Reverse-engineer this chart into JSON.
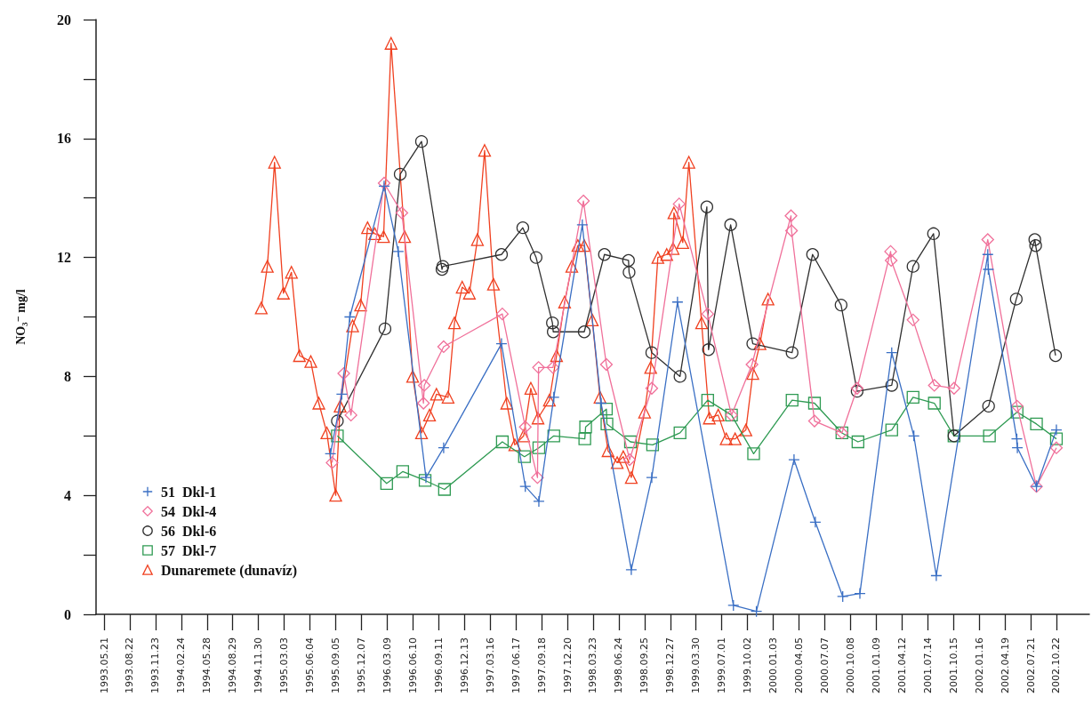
{
  "chart_data": {
    "type": "line",
    "ylabel": "NO₃⁻ mg/l",
    "legend": "bottom left",
    "grid": false,
    "xlim": [
      "1993-04-22",
      "2003-02-18"
    ],
    "xticks": [
      {
        "value": "1993-05-21",
        "label": "1993.05.21"
      },
      {
        "value": "1993-08-22",
        "label": "1993.08.22"
      },
      {
        "value": "1993-11-23",
        "label": "1993.11.23"
      },
      {
        "value": "1994-02-24",
        "label": "1994.02.24"
      },
      {
        "value": "1994-05-28",
        "label": "1994.05.28"
      },
      {
        "value": "1994-08-29",
        "label": "1994.08.29"
      },
      {
        "value": "1994-11-30",
        "label": "1994.11.30"
      },
      {
        "value": "1995-03-03",
        "label": "1995.03.03"
      },
      {
        "value": "1995-06-04",
        "label": "1995.06.04"
      },
      {
        "value": "1995-09-05",
        "label": "1995.09.05"
      },
      {
        "value": "1995-12-07",
        "label": "1995.12.07"
      },
      {
        "value": "1996-03-09",
        "label": "1996.03.09"
      },
      {
        "value": "1996-06-10",
        "label": "1996.06.10"
      },
      {
        "value": "1996-09-11",
        "label": "1996.09.11"
      },
      {
        "value": "1996-12-13",
        "label": "1996.12.13"
      },
      {
        "value": "1997-03-16",
        "label": "1997.03.16"
      },
      {
        "value": "1997-06-17",
        "label": "1997.06.17"
      },
      {
        "value": "1997-09-18",
        "label": "1997.09.18"
      },
      {
        "value": "1997-12-20",
        "label": "1997.12.20"
      },
      {
        "value": "1998-03-23",
        "label": "1998.03.23"
      },
      {
        "value": "1998-06-24",
        "label": "1998.06.24"
      },
      {
        "value": "1998-09-25",
        "label": "1998.09.25"
      },
      {
        "value": "1998-12-27",
        "label": "1998.12.27"
      },
      {
        "value": "1999-03-30",
        "label": "1999.03.30"
      },
      {
        "value": "1999-07-01",
        "label": "1999.07.01"
      },
      {
        "value": "1999-10-02",
        "label": "1999.10.02"
      },
      {
        "value": "2000-01-03",
        "label": "2000.01.03"
      },
      {
        "value": "2000-04-05",
        "label": "2000.04.05"
      },
      {
        "value": "2000-07-07",
        "label": "2000.07.07"
      },
      {
        "value": "2000-10-08",
        "label": "2000.10.08"
      },
      {
        "value": "2001-01-09",
        "label": "2001.01.09"
      },
      {
        "value": "2001-04-12",
        "label": "2001.04.12"
      },
      {
        "value": "2001-07-14",
        "label": "2001.07.14"
      },
      {
        "value": "2001-10-15",
        "label": "2001.10.15"
      },
      {
        "value": "2002-01-16",
        "label": "2002.01.16"
      },
      {
        "value": "2002-04-19",
        "label": "2002.04.19"
      },
      {
        "value": "2002-07-21",
        "label": "2002.07.21"
      },
      {
        "value": "2002-10-22",
        "label": "2002.10.22"
      }
    ],
    "ylim": [
      0,
      20
    ],
    "yticks": [
      0,
      {
        "value": 2,
        "label": null
      },
      4,
      {
        "value": 6,
        "label": null
      },
      8,
      {
        "value": 10,
        "label": null
      },
      12,
      {
        "value": 14,
        "label": null
      },
      16,
      {
        "value": 18,
        "label": null
      },
      20
    ],
    "series": [
      {
        "name": "51  Dkl-1",
        "color": "#3a6fc4",
        "marker": "cross",
        "x": [
          "1995-08-17",
          "1995-09-27",
          "1995-10-26",
          "1996-02-27",
          "1996-04-18",
          "1996-07-27",
          "1996-09-29",
          "1997-04-26",
          "1997-07-21",
          "1997-09-08",
          "1997-11-01",
          "1998-02-12",
          "1998-04-21",
          "1998-08-08",
          "1998-10-21",
          "1999-01-22",
          "1999-08-12",
          "1999-11-03",
          "2000-03-18",
          "2000-06-03",
          "2000-09-10",
          "2000-11-11",
          "2001-03-06",
          "2001-05-25",
          "2001-08-14",
          "2002-02-16",
          "2002-02-18",
          "2002-06-01",
          "2002-06-03",
          "2002-08-11",
          "2002-10-22"
        ],
        "values": [
          5.4,
          7.4,
          10.0,
          14.4,
          12.2,
          4.6,
          5.6,
          9.1,
          4.3,
          3.8,
          7.3,
          13.1,
          7.1,
          1.5,
          4.6,
          10.5,
          0.3,
          0.1,
          5.2,
          3.1,
          0.6,
          0.7,
          8.8,
          6.0,
          1.3,
          12.1,
          11.6,
          5.9,
          5.6,
          4.3,
          6.2
        ]
      },
      {
        "name": "54  Dkl-4",
        "color": "#f0709a",
        "marker": "diamond",
        "x": [
          "1995-08-23",
          "1995-10-04",
          "1995-10-30",
          "1996-02-27",
          "1996-05-01",
          "1996-07-18",
          "1996-07-21",
          "1996-09-29",
          "1997-04-29",
          "1997-07-21",
          "1997-09-03",
          "1997-09-07",
          "1997-10-29",
          "1998-02-16",
          "1998-05-10",
          "1998-08-02",
          "1998-10-21",
          "1999-01-28",
          "1999-05-11",
          "1999-08-05",
          "1999-10-18",
          "2000-03-07",
          "2000-03-09",
          "2000-05-31",
          "2000-09-07",
          "2000-11-01",
          "2001-03-02",
          "2001-03-04",
          "2001-05-22",
          "2001-08-07",
          "2001-10-17",
          "2002-02-16",
          "2002-06-02",
          "2002-08-11",
          "2002-10-22"
        ],
        "values": [
          5.1,
          8.1,
          6.7,
          14.5,
          13.5,
          7.1,
          7.7,
          9.0,
          10.1,
          6.3,
          4.6,
          8.3,
          8.3,
          13.9,
          8.4,
          5.2,
          7.6,
          13.8,
          10.1,
          6.7,
          8.4,
          13.4,
          12.9,
          6.5,
          6.1,
          7.6,
          12.2,
          11.9,
          9.9,
          7.7,
          7.6,
          12.6,
          7.0,
          4.3,
          5.6
        ]
      },
      {
        "name": "56  Dkl-6",
        "color": "#303030",
        "marker": "circle",
        "x": [
          "1995-09-11",
          "1996-03-01",
          "1996-04-25",
          "1996-07-11",
          "1996-09-23",
          "1996-09-26",
          "1997-04-26",
          "1997-07-12",
          "1997-08-29",
          "1997-10-27",
          "1997-10-30",
          "1998-02-19",
          "1998-05-03",
          "1998-07-29",
          "1998-07-31",
          "1998-10-21",
          "1999-01-31",
          "1999-05-08",
          "1999-05-14",
          "1999-08-02",
          "1999-10-21",
          "2000-03-11",
          "2000-05-24",
          "2000-09-04",
          "2000-11-01",
          "2001-03-06",
          "2001-05-22",
          "2001-08-04",
          "2001-10-17",
          "2002-02-19",
          "2002-05-30",
          "2002-08-05",
          "2002-08-08",
          "2002-10-19"
        ],
        "values": [
          6.5,
          9.6,
          14.8,
          15.9,
          11.6,
          11.7,
          12.1,
          13.0,
          12.0,
          9.8,
          9.5,
          9.5,
          12.1,
          11.9,
          11.5,
          8.8,
          8.0,
          13.7,
          8.9,
          13.1,
          9.1,
          8.8,
          12.1,
          10.4,
          7.5,
          7.7,
          11.7,
          12.8,
          6.0,
          7.0,
          10.6,
          12.6,
          12.4,
          8.7
        ]
      },
      {
        "name": "57  Dkl-7",
        "color": "#2e9a52",
        "marker": "square",
        "x": [
          "1995-09-11",
          "1996-03-07",
          "1996-05-04",
          "1996-07-24",
          "1996-10-02",
          "1997-04-29",
          "1997-07-18",
          "1997-09-08",
          "1997-11-01",
          "1998-02-21",
          "1998-02-24",
          "1998-05-10",
          "1998-05-12",
          "1998-08-05",
          "1998-10-24",
          "1999-01-31",
          "1999-05-11",
          "1999-08-05",
          "1999-10-24",
          "2000-03-11",
          "2000-05-31",
          "2000-09-07",
          "2000-11-04",
          "2001-03-06",
          "2001-05-22",
          "2001-08-07",
          "2001-10-17",
          "2002-02-22",
          "2002-06-02",
          "2002-08-11",
          "2002-10-22"
        ],
        "values": [
          6.0,
          4.4,
          4.8,
          4.5,
          4.2,
          5.8,
          5.3,
          5.6,
          6.0,
          5.9,
          6.3,
          6.9,
          6.4,
          5.8,
          5.7,
          6.1,
          7.2,
          6.7,
          5.4,
          7.2,
          7.1,
          6.1,
          5.8,
          6.2,
          7.3,
          7.1,
          6.0,
          6.0,
          6.8,
          6.4,
          5.9
        ]
      },
      {
        "name": "Dunaremete (dunavíz)",
        "color": "#f04020",
        "marker": "triangle",
        "x": [
          "1994-12-10",
          "1995-01-01",
          "1995-01-27",
          "1995-02-28",
          "1995-03-29",
          "1995-04-27",
          "1995-06-07",
          "1995-07-06",
          "1995-08-04",
          "1995-09-05",
          "1995-09-21",
          "1995-11-05",
          "1995-12-04",
          "1995-12-29",
          "1996-01-24",
          "1996-02-25",
          "1996-03-23",
          "1996-05-11",
          "1996-06-09",
          "1996-07-11",
          "1996-08-09",
          "1996-09-03",
          "1996-10-15",
          "1996-11-07",
          "1996-12-05",
          "1996-12-31",
          "1997-01-29",
          "1997-02-24",
          "1997-03-28",
          "1997-05-15",
          "1997-06-13",
          "1997-07-15",
          "1997-08-10",
          "1997-09-05",
          "1997-10-16",
          "1997-11-11",
          "1997-12-10",
          "1998-01-05",
          "1998-01-27",
          "1998-02-19",
          "1998-03-20",
          "1998-04-17",
          "1998-05-16",
          "1998-06-18",
          "1998-07-10",
          "1998-08-08",
          "1998-09-25",
          "1998-10-17",
          "1998-11-12",
          "1998-12-14",
          "1999-01-06",
          "1999-01-09",
          "1999-02-10",
          "1999-03-04",
          "1999-04-19",
          "1999-05-17",
          "1999-06-18",
          "1999-07-17",
          "1999-08-18",
          "1999-09-26",
          "1999-10-21",
          "1999-11-16",
          "1999-12-15"
        ],
        "values": [
          10.3,
          11.7,
          15.2,
          10.8,
          11.5,
          8.7,
          8.5,
          7.1,
          6.1,
          4.0,
          7.0,
          9.7,
          10.4,
          13.0,
          12.8,
          12.7,
          19.2,
          12.7,
          8.0,
          6.1,
          6.7,
          7.4,
          7.3,
          9.8,
          11.0,
          10.8,
          12.6,
          15.6,
          11.1,
          7.1,
          5.7,
          6.0,
          7.6,
          6.6,
          7.2,
          8.7,
          10.5,
          11.7,
          12.4,
          12.4,
          9.9,
          7.3,
          5.5,
          5.1,
          5.3,
          4.6,
          6.8,
          8.3,
          12.0,
          12.1,
          12.3,
          13.5,
          12.5,
          15.2,
          9.8,
          6.6,
          6.7,
          5.9,
          5.9,
          6.2,
          8.1,
          9.1,
          10.6
        ]
      }
    ]
  }
}
